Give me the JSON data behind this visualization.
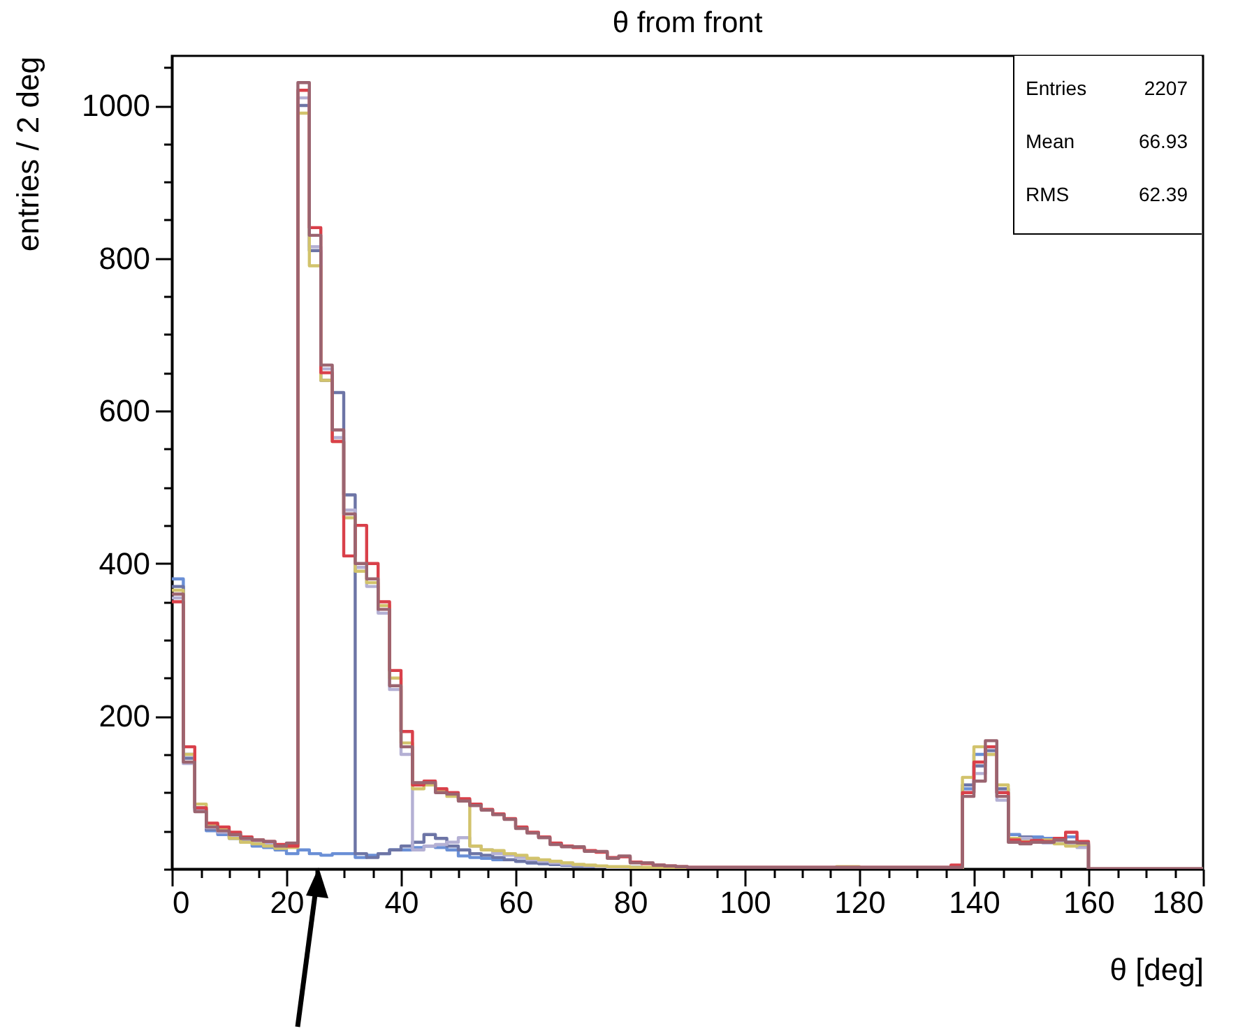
{
  "chart_data": {
    "type": "histogram",
    "title": "θ from front",
    "xlabel": "θ [deg]",
    "ylabel": "entries / 2 deg",
    "annotations": [
      "Entries 2207",
      "Mean 66.93",
      "RMS 62.39"
    ],
    "bins": [
      0,
      2,
      4,
      6,
      8,
      10,
      12,
      14,
      16,
      18,
      20,
      22,
      24,
      26,
      28,
      30,
      32,
      34,
      36,
      38,
      40,
      42,
      44,
      46,
      48,
      50,
      52,
      54,
      56,
      58,
      60,
      62,
      64,
      66,
      68,
      70,
      72,
      74,
      76,
      78,
      80,
      82,
      84,
      86,
      88,
      90,
      92,
      94,
      96,
      98,
      100,
      102,
      104,
      106,
      108,
      110,
      112,
      114,
      116,
      118,
      120,
      122,
      124,
      126,
      128,
      130,
      132,
      134,
      136,
      138,
      140,
      142,
      144,
      146,
      148,
      150,
      152,
      154,
      156,
      158,
      160,
      162,
      164,
      166,
      168,
      170,
      172,
      174,
      176,
      178,
      180
    ],
    "series": [
      {
        "color": "#6a8fd6",
        "values": [
          380,
          150,
          80,
          50,
          45,
          40,
          35,
          30,
          28,
          25,
          20,
          25,
          20,
          18,
          20,
          20,
          15,
          18,
          20,
          25,
          25,
          28,
          30,
          28,
          25,
          17,
          15,
          14,
          12,
          12,
          10,
          8,
          7,
          6,
          5,
          4,
          3,
          3,
          2,
          2,
          2,
          1,
          1,
          1,
          1,
          1,
          1,
          1,
          1,
          1,
          1,
          1,
          1,
          1,
          1,
          1,
          1,
          1,
          1,
          1,
          1,
          1,
          1,
          1,
          1,
          1,
          1,
          1,
          1,
          105,
          150,
          160,
          100,
          45,
          40,
          42,
          40,
          38,
          42,
          32,
          0,
          0,
          0,
          0,
          0,
          0,
          0,
          0,
          0,
          0
        ]
      },
      {
        "color": "#6d75a6",
        "values": [
          370,
          145,
          78,
          52,
          48,
          42,
          38,
          35,
          32,
          28,
          30,
          1000,
          810,
          640,
          624,
          490,
          20,
          15,
          20,
          25,
          30,
          35,
          45,
          40,
          30,
          25,
          20,
          18,
          15,
          12,
          10,
          8,
          7,
          6,
          5,
          4,
          3,
          3,
          2,
          2,
          2,
          1,
          1,
          1,
          1,
          1,
          1,
          1,
          1,
          1,
          1,
          1,
          1,
          1,
          1,
          1,
          1,
          1,
          1,
          1,
          1,
          1,
          1,
          1,
          1,
          1,
          1,
          1,
          1,
          110,
          135,
          155,
          105,
          40,
          42,
          38,
          36,
          40,
          35,
          30,
          0,
          0,
          0,
          0,
          0,
          0,
          0,
          0,
          0,
          0
        ]
      },
      {
        "color": "#b4b0d4",
        "values": [
          355,
          138,
          76,
          54,
          48,
          44,
          39,
          36,
          34,
          29,
          32,
          1010,
          815,
          655,
          565,
          470,
          395,
          370,
          335,
          235,
          150,
          25,
          30,
          32,
          35,
          41,
          30,
          25,
          20,
          18,
          15,
          12,
          10,
          8,
          6,
          5,
          4,
          3,
          2,
          2,
          2,
          1,
          1,
          1,
          1,
          1,
          1,
          1,
          1,
          1,
          1,
          1,
          1,
          1,
          1,
          1,
          1,
          1,
          1,
          1,
          1,
          1,
          1,
          1,
          1,
          1,
          1,
          1,
          1,
          100,
          125,
          150,
          90,
          38,
          40,
          36,
          34,
          37,
          33,
          28,
          0,
          0,
          0,
          0,
          0,
          0,
          0,
          0,
          0,
          0
        ]
      },
      {
        "color": "#d2c36c",
        "values": [
          365,
          150,
          85,
          58,
          52,
          40,
          35,
          33,
          30,
          27,
          28,
          990,
          790,
          640,
          560,
          460,
          390,
          375,
          345,
          250,
          165,
          105,
          110,
          102,
          95,
          90,
          30,
          25,
          24,
          20,
          18,
          14,
          12,
          10,
          8,
          6,
          5,
          4,
          3,
          3,
          2,
          2,
          1,
          1,
          1,
          1,
          1,
          1,
          1,
          1,
          1,
          1,
          1,
          1,
          1,
          1,
          1,
          1,
          3,
          3,
          1,
          1,
          1,
          1,
          1,
          1,
          1,
          1,
          1,
          120,
          160,
          150,
          110,
          40,
          36,
          35,
          38,
          33,
          30,
          32,
          0,
          0,
          0,
          0,
          0,
          0,
          0,
          0,
          0,
          0
        ]
      },
      {
        "color": "#d9404a",
        "values": [
          350,
          160,
          80,
          60,
          55,
          48,
          42,
          38,
          36,
          32,
          30,
          1020,
          840,
          650,
          560,
          410,
          450,
          400,
          350,
          260,
          180,
          110,
          115,
          105,
          100,
          92,
          85,
          78,
          72,
          66,
          55,
          48,
          42,
          34,
          30,
          28,
          24,
          22,
          15,
          16,
          9,
          7,
          5,
          4,
          3,
          2,
          2,
          2,
          2,
          2,
          2,
          2,
          2,
          2,
          2,
          2,
          2,
          2,
          2,
          2,
          2,
          2,
          2,
          2,
          2,
          2,
          2,
          2,
          5,
          100,
          140,
          160,
          100,
          38,
          35,
          37,
          36,
          40,
          48,
          36,
          0,
          0,
          0,
          0,
          0,
          0,
          0,
          0,
          0,
          0
        ]
      },
      {
        "color": "#9b6470",
        "values": [
          360,
          140,
          75,
          55,
          50,
          45,
          40,
          38,
          36,
          30,
          34,
          1030,
          830,
          660,
          575,
          465,
          400,
          380,
          340,
          240,
          160,
          113,
          113,
          100,
          98,
          89,
          83,
          77,
          71,
          65,
          53,
          47,
          41,
          32,
          29,
          29,
          23,
          23,
          14,
          17,
          8,
          8,
          5,
          4,
          3,
          2,
          2,
          2,
          2,
          2,
          2,
          2,
          2,
          2,
          2,
          2,
          2,
          2,
          2,
          2,
          2,
          2,
          2,
          2,
          2,
          2,
          2,
          2,
          2,
          95,
          115,
          168,
          95,
          35,
          33,
          35,
          35,
          38,
          35,
          34,
          0,
          0,
          0,
          0,
          0,
          0,
          0,
          0,
          0,
          0
        ]
      }
    ],
    "xlim": [
      0,
      180
    ],
    "xticks": [
      0,
      {
        "value": 5,
        "label": null
      },
      {
        "value": 10,
        "label": null
      },
      {
        "value": 15,
        "label": null
      },
      20,
      {
        "value": 25,
        "label": null
      },
      {
        "value": 30,
        "label": null
      },
      {
        "value": 35,
        "label": null
      },
      40,
      {
        "value": 45,
        "label": null
      },
      {
        "value": 50,
        "label": null
      },
      {
        "value": 55,
        "label": null
      },
      60,
      {
        "value": 65,
        "label": null
      },
      {
        "value": 70,
        "label": null
      },
      {
        "value": 75,
        "label": null
      },
      80,
      {
        "value": 85,
        "label": null
      },
      {
        "value": 90,
        "label": null
      },
      {
        "value": 95,
        "label": null
      },
      100,
      {
        "value": 105,
        "label": null
      },
      {
        "value": 110,
        "label": null
      },
      {
        "value": 115,
        "label": null
      },
      120,
      {
        "value": 125,
        "label": null
      },
      {
        "value": 130,
        "label": null
      },
      {
        "value": 135,
        "label": null
      },
      140,
      {
        "value": 145,
        "label": null
      },
      {
        "value": 150,
        "label": null
      },
      {
        "value": 155,
        "label": null
      },
      160,
      {
        "value": 165,
        "label": null
      },
      {
        "value": 170,
        "label": null
      },
      {
        "value": 175,
        "label": null
      },
      180
    ],
    "ylim": [
      0,
      1065
    ],
    "yticks": [
      {
        "value": 0,
        "label": null
      },
      {
        "value": 50,
        "label": null
      },
      {
        "value": 100,
        "label": null
      },
      {
        "value": 150,
        "label": null
      },
      200,
      {
        "value": 250,
        "label": null
      },
      {
        "value": 300,
        "label": null
      },
      {
        "value": 350,
        "label": null
      },
      400,
      {
        "value": 450,
        "label": null
      },
      {
        "value": 500,
        "label": null
      },
      {
        "value": 550,
        "label": null
      },
      600,
      {
        "value": 650,
        "label": null
      },
      {
        "value": 700,
        "label": null
      },
      {
        "value": 750,
        "label": null
      },
      800,
      {
        "value": 850,
        "label": null
      },
      {
        "value": 900,
        "label": null
      },
      {
        "value": 950,
        "label": null
      },
      1000,
      {
        "value": 1050,
        "label": null
      }
    ]
  }
}
